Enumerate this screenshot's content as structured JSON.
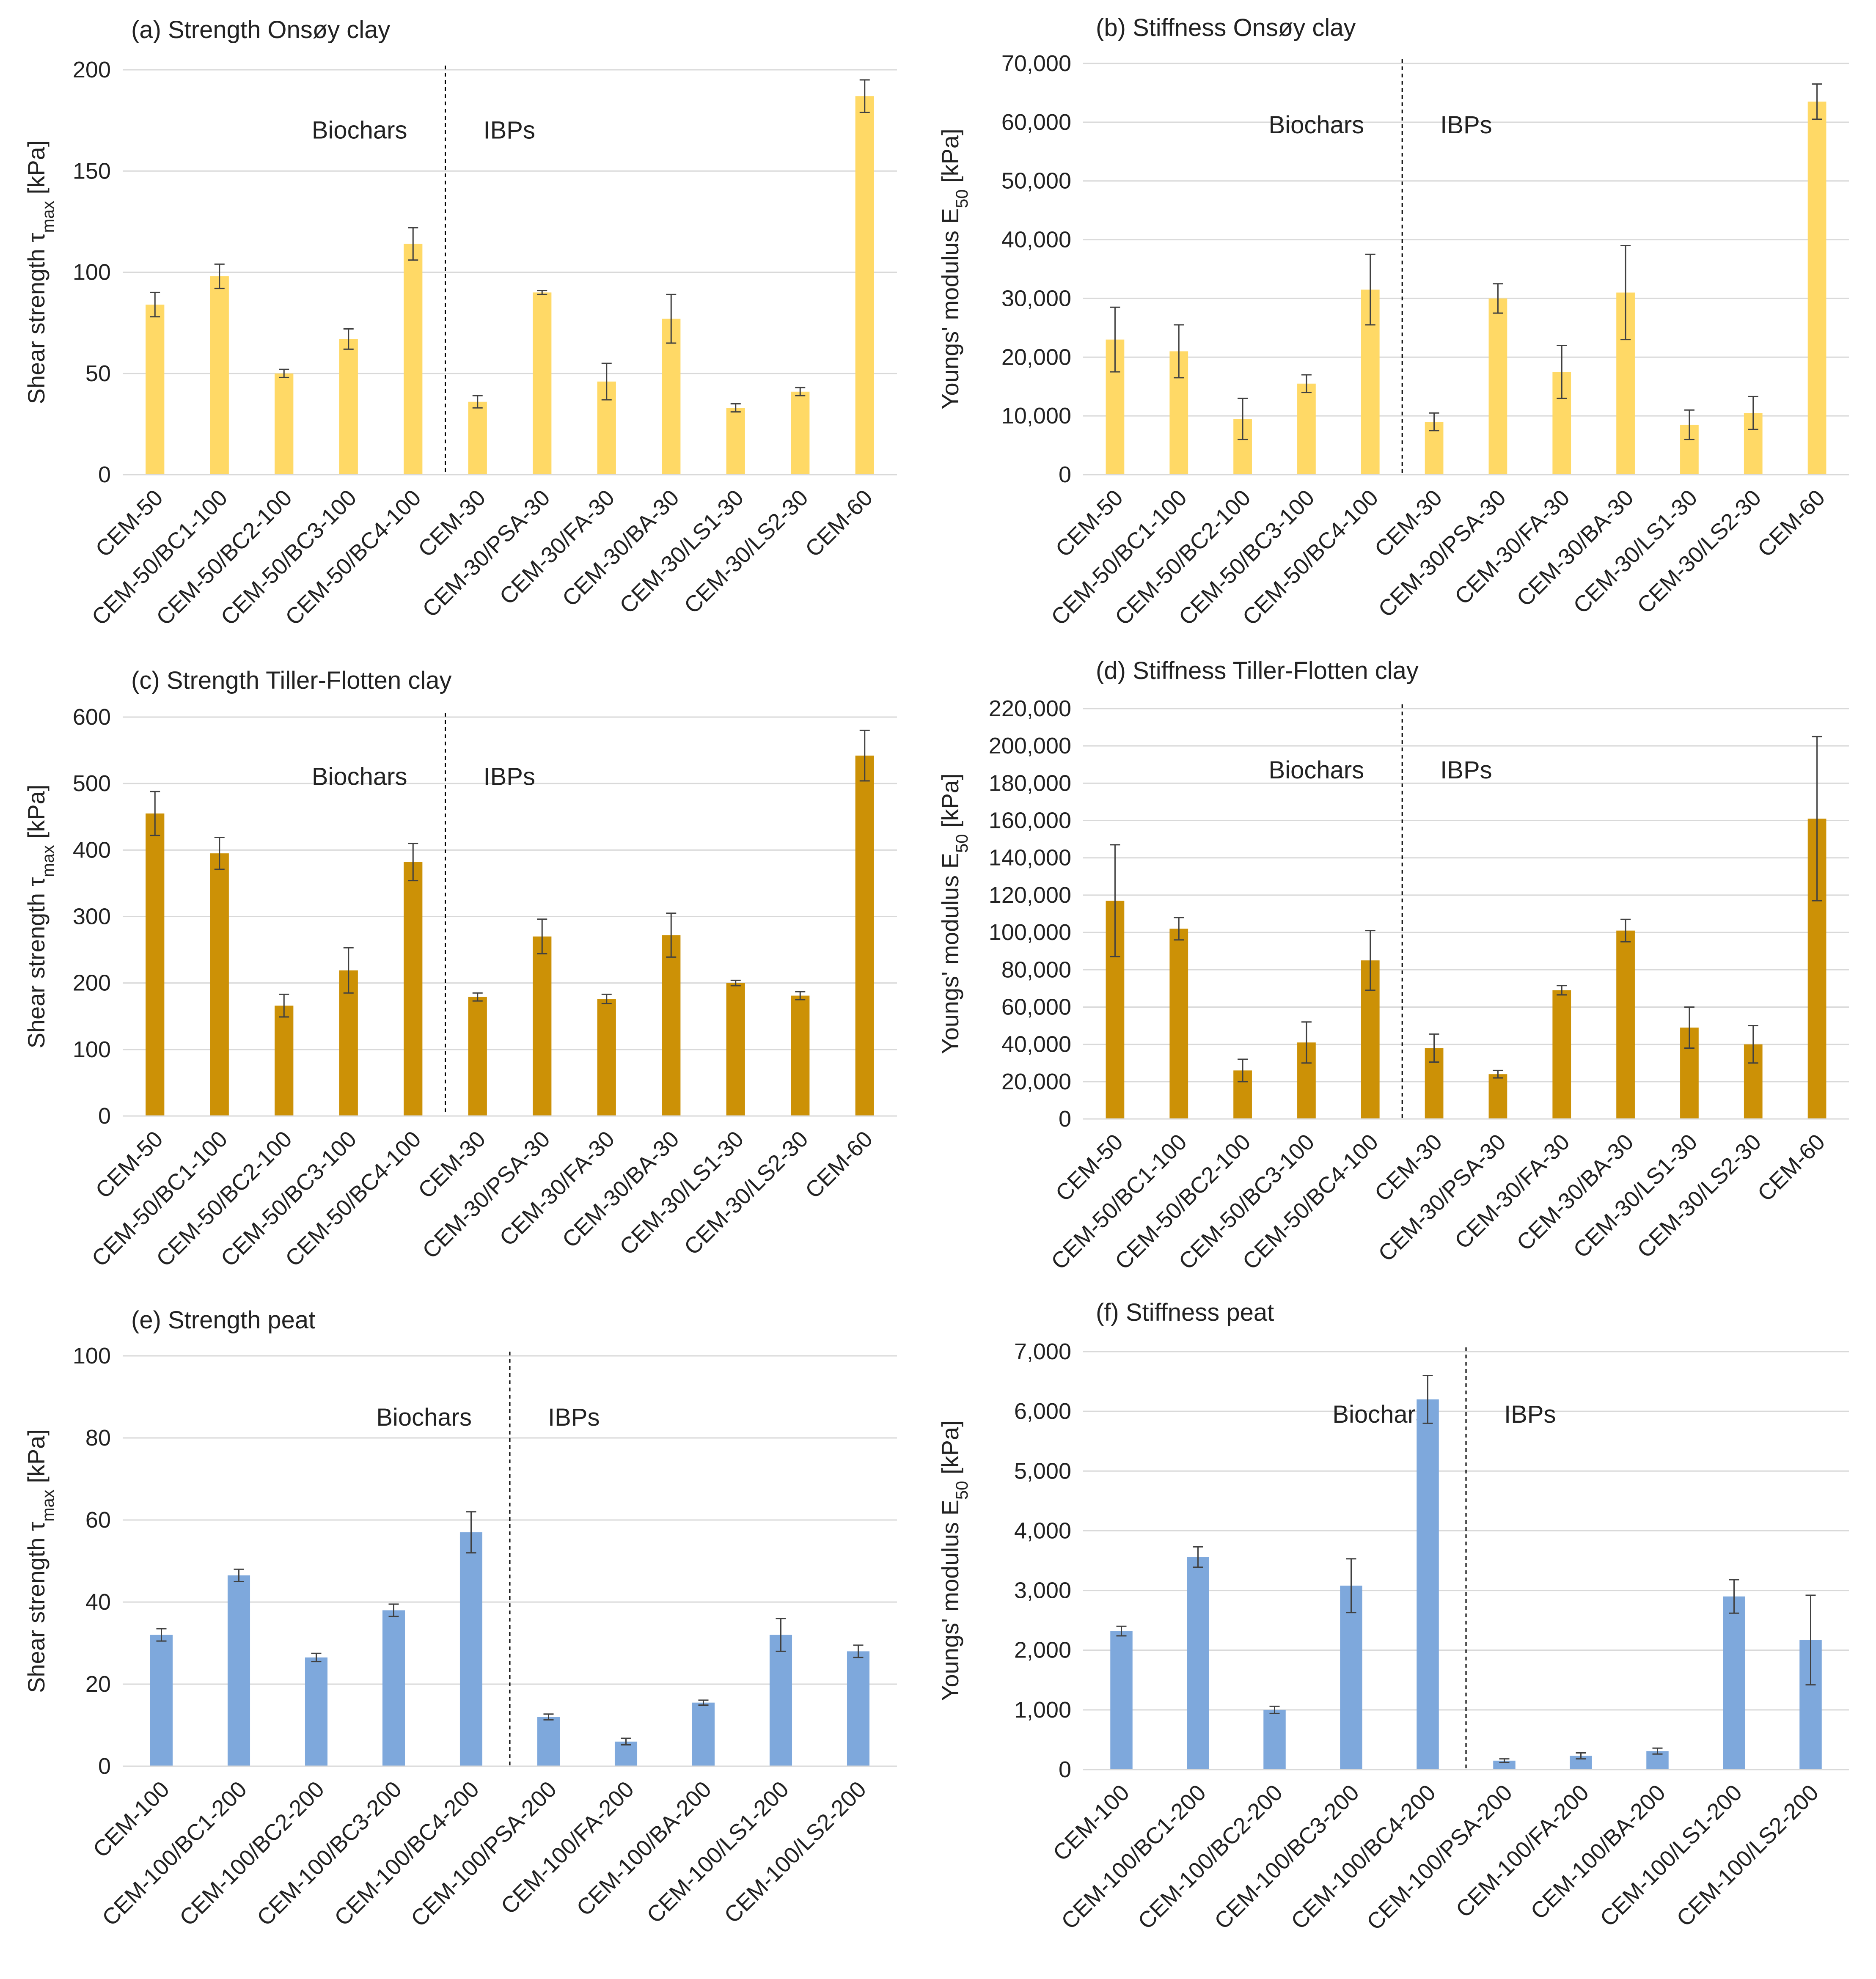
{
  "chart_data": [
    {
      "id": "a",
      "type": "bar",
      "title": "(a) Strength Onsøy clay",
      "ylabel": "Shear strength τmax [kPa]",
      "ylabel_main": "Shear strength τ",
      "ylabel_sub": "max",
      "ylabel_unit": " [kPa]",
      "ylim": [
        0,
        200
      ],
      "yticks": [
        0,
        50,
        100,
        150,
        200
      ],
      "tick_labels": [
        "0",
        "50",
        "100",
        "150",
        "200"
      ],
      "color": "#FFD966",
      "group_labels": [
        "Biochars",
        "IBPs"
      ],
      "divider_after_index": 4,
      "categories": [
        "CEM-50",
        "CEM-50/BC1-100",
        "CEM-50/BC2-100",
        "CEM-50/BC3-100",
        "CEM-50/BC4-100",
        "CEM-30",
        "CEM-30/PSA-30",
        "CEM-30/FA-30",
        "CEM-30/BA-30",
        "CEM-30/LS1-30",
        "CEM-30/LS2-30",
        "CEM-60"
      ],
      "values": [
        84,
        98,
        50,
        67,
        114,
        36,
        90,
        46,
        77,
        33,
        41,
        187
      ],
      "errors": [
        6,
        6,
        2,
        5,
        8,
        3,
        1,
        9,
        12,
        2,
        2,
        8
      ]
    },
    {
      "id": "b",
      "type": "bar",
      "title": "(b) Stiffness Onsøy clay",
      "ylabel": "Youngs' modulus E50 [kPa]",
      "ylabel_main": "Youngs' modulus E",
      "ylabel_sub": "50",
      "ylabel_unit": " [kPa]",
      "ylim": [
        0,
        70000
      ],
      "yticks": [
        0,
        10000,
        20000,
        30000,
        40000,
        50000,
        60000,
        70000
      ],
      "tick_labels": [
        "0",
        "10,000",
        "20,000",
        "30,000",
        "40,000",
        "50,000",
        "60,000",
        "70,000"
      ],
      "color": "#FFD966",
      "group_labels": [
        "Biochars",
        "IBPs"
      ],
      "divider_after_index": 4,
      "categories": [
        "CEM-50",
        "CEM-50/BC1-100",
        "CEM-50/BC2-100",
        "CEM-50/BC3-100",
        "CEM-50/BC4-100",
        "CEM-30",
        "CEM-30/PSA-30",
        "CEM-30/FA-30",
        "CEM-30/BA-30",
        "CEM-30/LS1-30",
        "CEM-30/LS2-30",
        "CEM-60"
      ],
      "values": [
        23000,
        21000,
        9500,
        15500,
        31500,
        9000,
        30000,
        17500,
        31000,
        8500,
        10500,
        63500
      ],
      "errors": [
        5500,
        4500,
        3500,
        1500,
        6000,
        1500,
        2500,
        4500,
        8000,
        2500,
        2800,
        3000
      ]
    },
    {
      "id": "c",
      "type": "bar",
      "title": "(c) Strength Tiller-Flotten clay",
      "ylabel": "Shear strength τmax [kPa]",
      "ylabel_main": "Shear strength τ",
      "ylabel_sub": "max",
      "ylabel_unit": " [kPa]",
      "ylim": [
        0,
        600
      ],
      "yticks": [
        0,
        100,
        200,
        300,
        400,
        500,
        600
      ],
      "tick_labels": [
        "0",
        "100",
        "200",
        "300",
        "400",
        "500",
        "600"
      ],
      "color": "#CC9106",
      "group_labels": [
        "Biochars",
        "IBPs"
      ],
      "divider_after_index": 4,
      "categories": [
        "CEM-50",
        "CEM-50/BC1-100",
        "CEM-50/BC2-100",
        "CEM-50/BC3-100",
        "CEM-50/BC4-100",
        "CEM-30",
        "CEM-30/PSA-30",
        "CEM-30/FA-30",
        "CEM-30/BA-30",
        "CEM-30/LS1-30",
        "CEM-30/LS2-30",
        "CEM-60"
      ],
      "values": [
        455,
        395,
        166,
        219,
        382,
        179,
        270,
        176,
        272,
        200,
        181,
        542
      ],
      "errors": [
        33,
        24,
        17,
        34,
        28,
        6,
        26,
        7,
        33,
        4,
        6,
        38
      ]
    },
    {
      "id": "d",
      "type": "bar",
      "title": "(d) Stiffness Tiller-Flotten clay",
      "ylabel": "Youngs' modulus E50 [kPa]",
      "ylabel_main": "Youngs' modulus E",
      "ylabel_sub": "50",
      "ylabel_unit": " [kPa]",
      "ylim": [
        0,
        220000
      ],
      "yticks": [
        0,
        20000,
        40000,
        60000,
        80000,
        100000,
        120000,
        140000,
        160000,
        180000,
        200000,
        220000
      ],
      "tick_labels": [
        "0",
        "20,000",
        "40,000",
        "60,000",
        "80,000",
        "100,000",
        "120,000",
        "140,000",
        "160,000",
        "180,000",
        "200,000",
        "220,000"
      ],
      "color": "#CC9106",
      "group_labels": [
        "Biochars",
        "IBPs"
      ],
      "divider_after_index": 4,
      "categories": [
        "CEM-50",
        "CEM-50/BC1-100",
        "CEM-50/BC2-100",
        "CEM-50/BC3-100",
        "CEM-50/BC4-100",
        "CEM-30",
        "CEM-30/PSA-30",
        "CEM-30/FA-30",
        "CEM-30/BA-30",
        "CEM-30/LS1-30",
        "CEM-30/LS2-30",
        "CEM-60"
      ],
      "values": [
        117000,
        102000,
        26000,
        41000,
        85000,
        38000,
        24000,
        69000,
        101000,
        49000,
        40000,
        161000
      ],
      "errors": [
        30000,
        6000,
        6000,
        11000,
        16000,
        7500,
        2000,
        2500,
        6000,
        11000,
        10000,
        44000
      ]
    },
    {
      "id": "e",
      "type": "bar",
      "title": "(e) Strength peat",
      "ylabel": "Shear strength τmax [kPa]",
      "ylabel_main": "Shear strength τ",
      "ylabel_sub": "max",
      "ylabel_unit": " [kPa]",
      "ylim": [
        0,
        100
      ],
      "yticks": [
        0,
        20,
        40,
        60,
        80,
        100
      ],
      "tick_labels": [
        "0",
        "20",
        "40",
        "60",
        "80",
        "100"
      ],
      "color": "#7EA8DC",
      "group_labels": [
        "Biochars",
        "IBPs"
      ],
      "divider_after_index": 4,
      "categories": [
        "CEM-100",
        "CEM-100/BC1-200",
        "CEM-100/BC2-200",
        "CEM-100/BC3-200",
        "CEM-100/BC4-200",
        "CEM-100/PSA-200",
        "CEM-100/FA-200",
        "CEM-100/BA-200",
        "CEM-100/LS1-200",
        "CEM-100/LS2-200"
      ],
      "values": [
        32,
        46.5,
        26.5,
        38,
        57,
        12,
        6,
        15.5,
        32,
        28
      ],
      "errors": [
        1.5,
        1.5,
        1,
        1.5,
        5,
        0.7,
        0.8,
        0.6,
        4,
        1.5
      ]
    },
    {
      "id": "f",
      "type": "bar",
      "title": "(f) Stiffness peat",
      "ylabel": "Youngs' modulus E50 [kPa]",
      "ylabel_main": "Youngs' modulus E",
      "ylabel_sub": "50",
      "ylabel_unit": " [kPa]",
      "ylim": [
        0,
        7000
      ],
      "yticks": [
        0,
        1000,
        2000,
        3000,
        4000,
        5000,
        6000,
        7000
      ],
      "tick_labels": [
        "0",
        "1,000",
        "2,000",
        "3,000",
        "4,000",
        "5,000",
        "6,000",
        "7,000"
      ],
      "color": "#7EA8DC",
      "group_labels": [
        "Biochars",
        "IBPs"
      ],
      "divider_after_index": 4,
      "categories": [
        "CEM-100",
        "CEM-100/BC1-200",
        "CEM-100/BC2-200",
        "CEM-100/BC3-200",
        "CEM-100/BC4-200",
        "CEM-100/PSA-200",
        "CEM-100/FA-200",
        "CEM-100/BA-200",
        "CEM-100/LS1-200",
        "CEM-100/LS2-200"
      ],
      "values": [
        2320,
        3560,
        1000,
        3080,
        6200,
        150,
        230,
        310,
        2900,
        2170
      ],
      "errors": [
        80,
        170,
        60,
        450,
        400,
        30,
        50,
        50,
        280,
        750
      ]
    }
  ]
}
